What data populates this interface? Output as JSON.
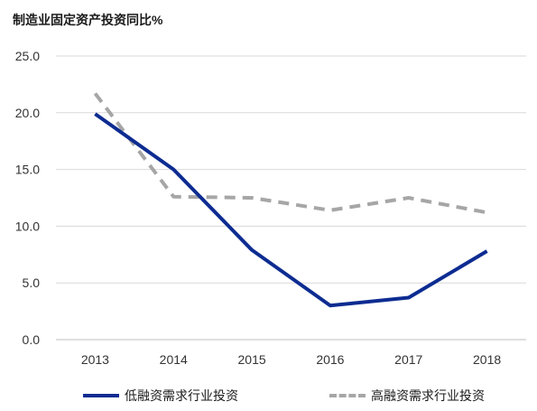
{
  "chart_data": {
    "type": "line",
    "title": "制造业固定资产投资同比%",
    "x": [
      "2013",
      "2014",
      "2015",
      "2016",
      "2017",
      "2018"
    ],
    "ylim": [
      0,
      25
    ],
    "yticks": [
      "0.0",
      "5.0",
      "10.0",
      "15.0",
      "20.0",
      "25.0"
    ],
    "grid": "horizontal",
    "legend_position": "bottom",
    "series": [
      {
        "name": "低融资需求行业投资",
        "values": [
          19.9,
          15.0,
          7.9,
          3.0,
          3.7,
          7.8
        ],
        "color": "#0d2c91",
        "style": "solid"
      },
      {
        "name": "高融资需求行业投资",
        "values": [
          21.7,
          12.6,
          12.5,
          11.4,
          12.5,
          11.2
        ],
        "color": "#a6a6a6",
        "style": "dashed"
      }
    ]
  }
}
